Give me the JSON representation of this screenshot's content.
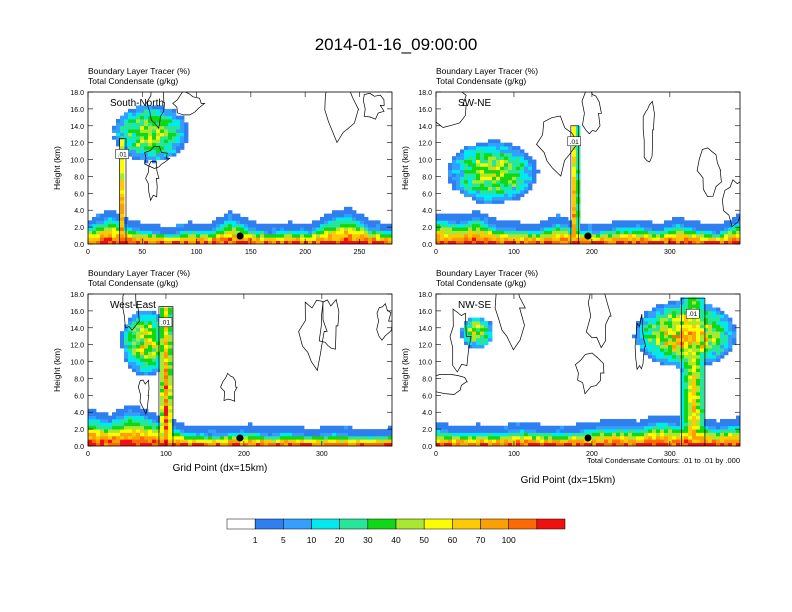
{
  "title": "2014-01-16_09:00:00",
  "colors": {
    "scale": [
      "#ffffff",
      "#2f7ff0",
      "#33a0ff",
      "#00eaee",
      "#26e69a",
      "#10d816",
      "#a8e82e",
      "#fcfe00",
      "#fcca00",
      "#fca000",
      "#ff6a00",
      "#f01010"
    ],
    "contour": "#000000",
    "marker": "#000000"
  },
  "chart_data": [
    {
      "type": "heatmap",
      "name": "South-North",
      "label": "South-North",
      "var_labels": [
        "Boundary Layer Tracer   (%)",
        "Total Condensate   (g/kg)"
      ],
      "ylabel": "Height (km)",
      "xlabel": "",
      "xlim": [
        0,
        280
      ],
      "ylim": [
        0,
        18
      ],
      "xticks": [
        "0",
        "50",
        "100",
        "150",
        "200",
        "250"
      ],
      "xtick_values": [
        0,
        50,
        100,
        150,
        200,
        250
      ],
      "yticks": [
        "0.0",
        "2.0",
        "4.0",
        "6.0",
        "8.0",
        "10.0",
        "12.0",
        "14.0",
        "16.0",
        "18.0"
      ],
      "marker_x": 140,
      "contour_label": ".01",
      "top_cloud": {
        "x0": 20,
        "x1": 95,
        "base": 9.5,
        "top": 16.8,
        "strength": 0.7
      },
      "column": {
        "x": 32,
        "width": 6,
        "top": 12.5,
        "strength": 1.0
      },
      "boundary_layer": [
        2.2,
        3.4,
        2.0,
        1.6,
        1.2,
        1.8,
        1.6,
        3.1,
        2.0,
        1.4,
        1.8,
        1.5,
        3.0,
        3.6,
        2.0,
        1.6
      ]
    },
    {
      "type": "heatmap",
      "name": "SW-NE",
      "label": "SW-NE",
      "var_labels": [
        "Boundary Layer Tracer   (%)",
        "Total Condensate   (g/kg)"
      ],
      "ylabel": "Height (km)",
      "xlabel": "",
      "xlim": [
        0,
        390
      ],
      "ylim": [
        0,
        18
      ],
      "xticks": [
        "0",
        "100",
        "200",
        "300"
      ],
      "xtick_values": [
        0,
        100,
        200,
        300
      ],
      "yticks": [
        "0.0",
        "2.0",
        "4.0",
        "6.0",
        "8.0",
        "10.0",
        "12.0",
        "14.0",
        "16.0",
        "18.0"
      ],
      "marker_x": 195,
      "contour_label": ".01",
      "top_cloud": {
        "x0": 10,
        "x1": 135,
        "base": 4.5,
        "top": 12.5,
        "strength": 0.7
      },
      "column": {
        "x": 178,
        "width": 10,
        "top": 14.0,
        "strength": 1.0
      },
      "boundary_layer": [
        3.0,
        2.6,
        3.2,
        2.0,
        1.8,
        1.6,
        2.6,
        1.8,
        1.5,
        2.0,
        2.2,
        1.6,
        2.4,
        1.8,
        1.4,
        2.6
      ]
    },
    {
      "type": "heatmap",
      "name": "West-East",
      "label": "West-East",
      "var_labels": [
        "Boundary Layer Tracer   (%)",
        "Total Condensate   (g/kg)"
      ],
      "ylabel": "Height (km)",
      "xlabel": "Grid Point (dx=15km)",
      "xlim": [
        0,
        390
      ],
      "ylim": [
        0,
        18
      ],
      "xticks": [
        "0",
        "100",
        "200",
        "300"
      ],
      "xtick_values": [
        0,
        100,
        200,
        300
      ],
      "yticks": [
        "0.0",
        "2.0",
        "4.0",
        "6.0",
        "8.0",
        "10.0",
        "12.0",
        "14.0",
        "16.0",
        "18.0"
      ],
      "marker_x": 195,
      "contour_label": ".01",
      "top_cloud": {
        "x0": 40,
        "x1": 110,
        "base": 8.0,
        "top": 16.5,
        "strength": 0.8
      },
      "column": {
        "x": 100,
        "width": 18,
        "top": 16.5,
        "strength": 1.0
      },
      "boundary_layer": [
        3.6,
        3.0,
        4.2,
        3.4,
        2.4,
        1.6,
        1.4,
        1.6,
        1.8,
        1.4,
        1.6,
        1.3,
        1.5,
        1.4,
        1.2,
        1.4
      ]
    },
    {
      "type": "heatmap",
      "name": "NW-SE",
      "label": "NW-SE",
      "var_labels": [
        "Boundary Layer Tracer   (%)",
        "Total Condensate   (g/kg)"
      ],
      "ylabel": "Height (km)",
      "xlabel": "Grid Point (dx=15km)",
      "xlim": [
        0,
        390
      ],
      "ylim": [
        0,
        18
      ],
      "xticks": [
        "0",
        "100",
        "200",
        "300"
      ],
      "xtick_values": [
        0,
        100,
        200,
        300
      ],
      "yticks": [
        "0.0",
        "2.0",
        "4.0",
        "6.0",
        "8.0",
        "10.0",
        "12.0",
        "14.0",
        "16.0",
        "18.0"
      ],
      "marker_x": 195,
      "contour_label": ".01",
      "top_cloud": {
        "x0": 250,
        "x1": 390,
        "base": 9.0,
        "top": 17.5,
        "strength": 0.9
      },
      "column": {
        "x": 330,
        "width": 30,
        "top": 17.5,
        "strength": 0.8
      },
      "boundary_layer": [
        2.0,
        1.6,
        1.8,
        1.6,
        2.0,
        1.8,
        1.6,
        1.8,
        2.2,
        2.4,
        2.2,
        3.0,
        2.6,
        2.8,
        2.2,
        2.6
      ],
      "extra_cloud": {
        "x0": 30,
        "x1": 75,
        "base": 11.5,
        "top": 15.5,
        "strength": 0.8
      }
    }
  ],
  "footnote": "Total Condensate Contours: .01 to .01 by .000",
  "colorbar": {
    "labels": [
      "1",
      "5",
      "10",
      "20",
      "30",
      "40",
      "50",
      "60",
      "70",
      "100"
    ]
  }
}
